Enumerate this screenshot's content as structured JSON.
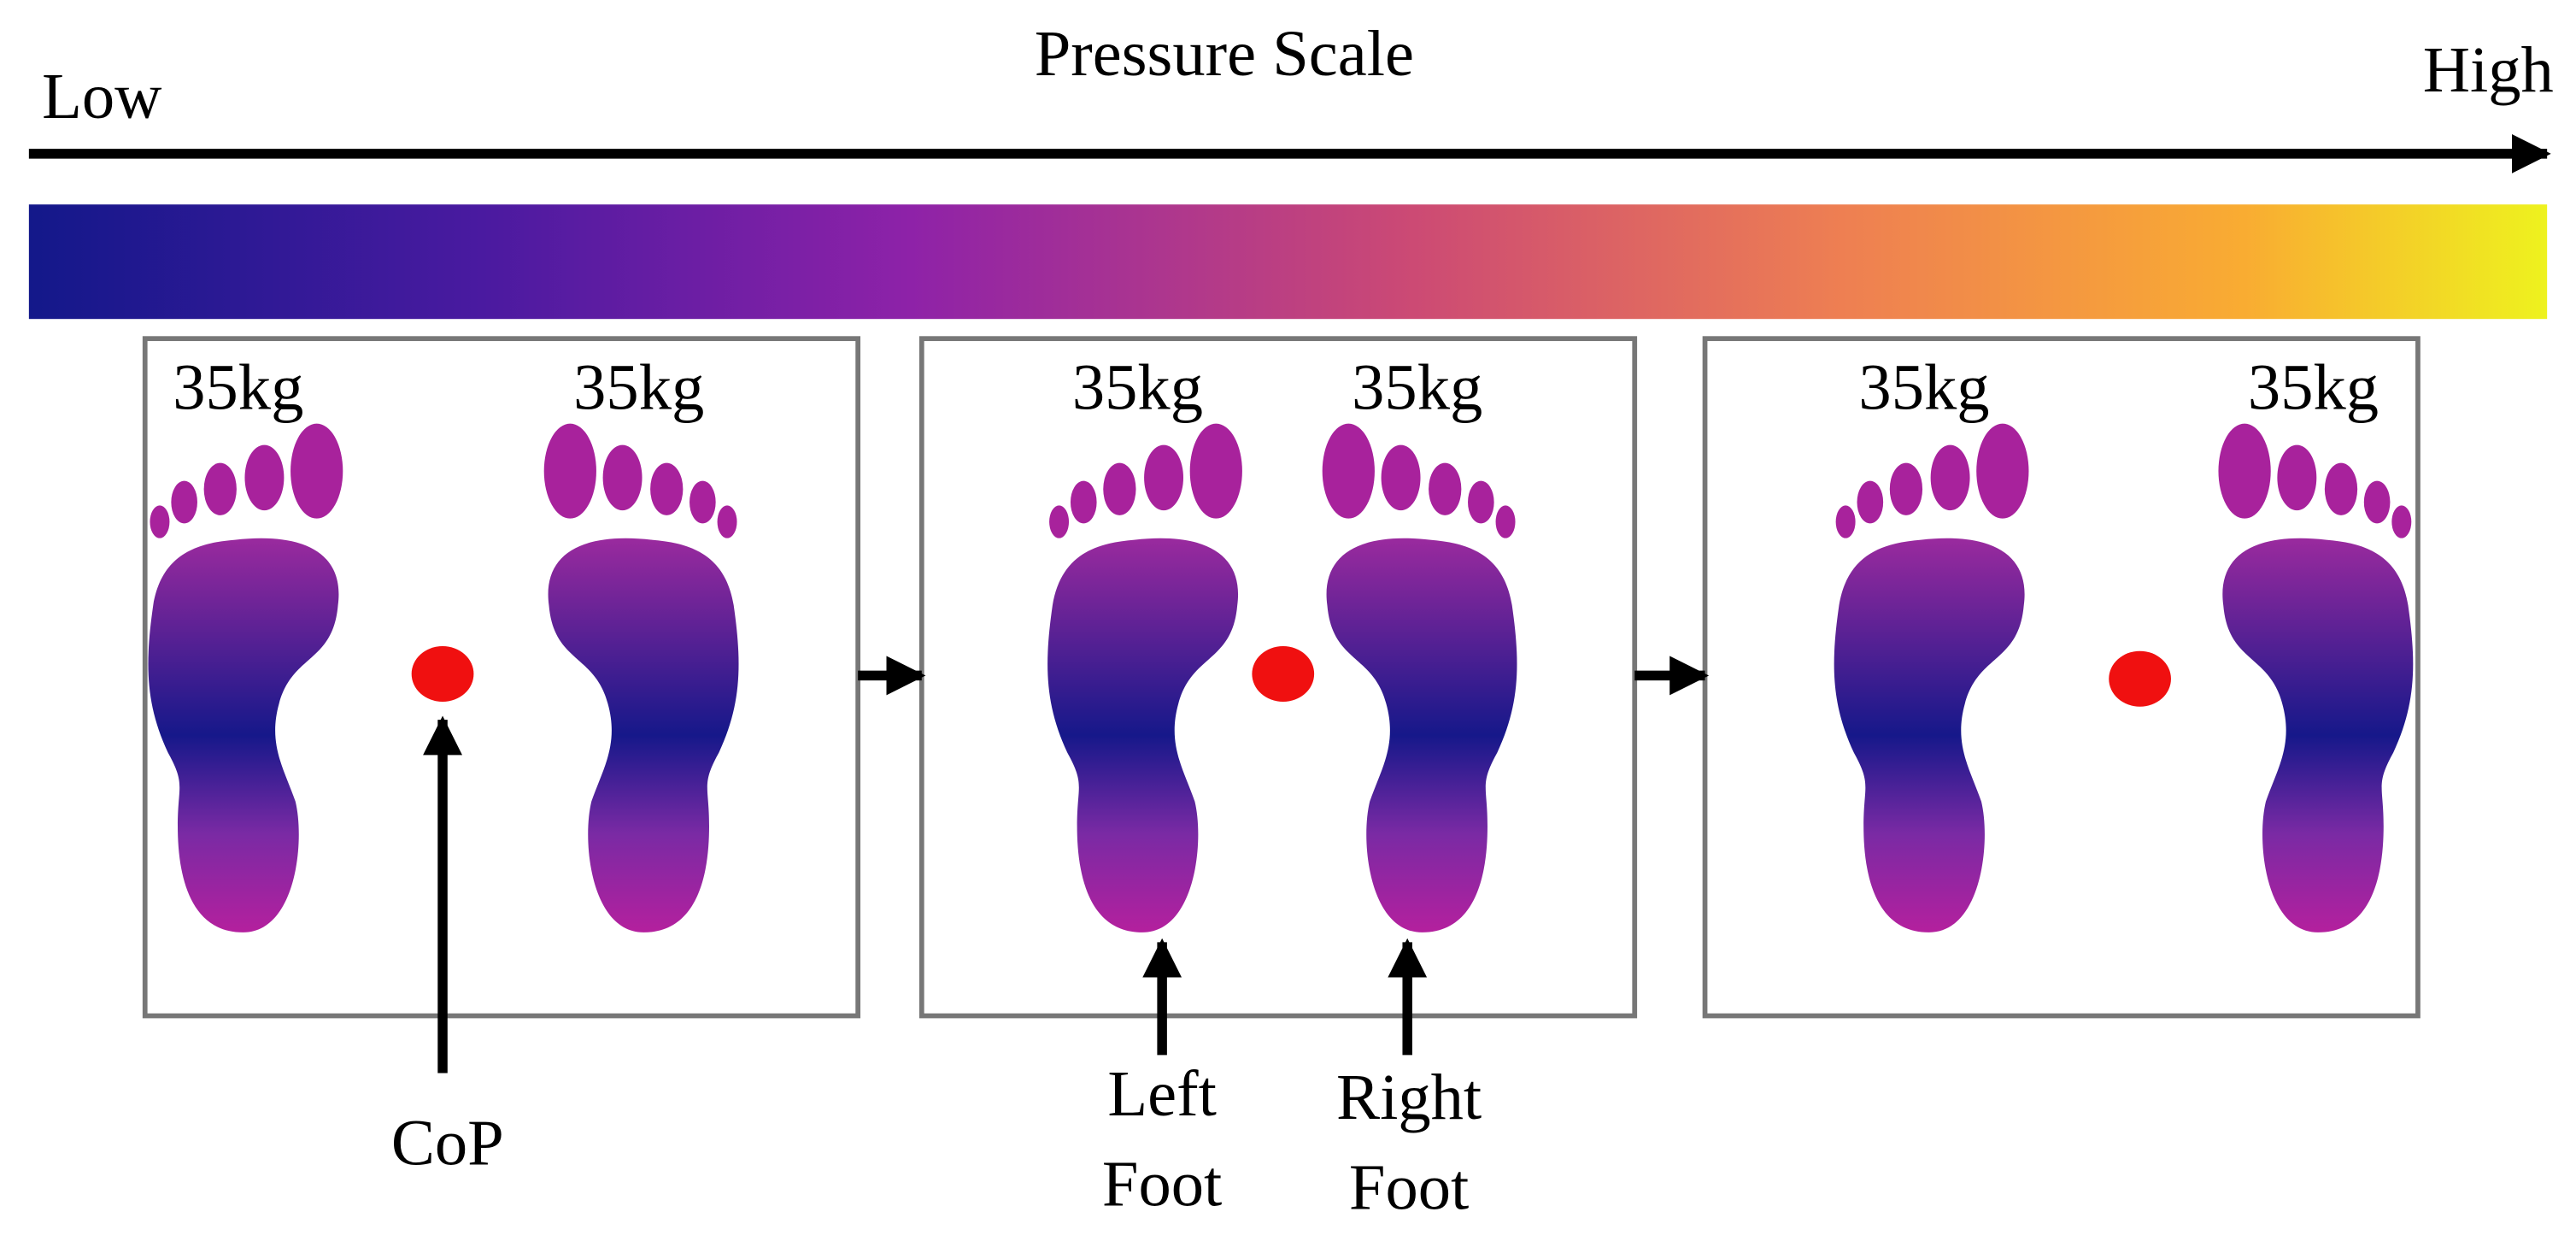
{
  "header": {
    "title": "Pressure Scale",
    "low": "Low",
    "high": "High"
  },
  "panels": [
    {
      "left_weight": "35kg",
      "right_weight": "35kg"
    },
    {
      "left_weight": "35kg",
      "right_weight": "35kg"
    },
    {
      "left_weight": "35kg",
      "right_weight": "35kg"
    }
  ],
  "annotations": {
    "cop": "CoP",
    "left_foot": [
      "Left",
      "Foot"
    ],
    "right_foot": [
      "Right",
      "Foot"
    ]
  }
}
